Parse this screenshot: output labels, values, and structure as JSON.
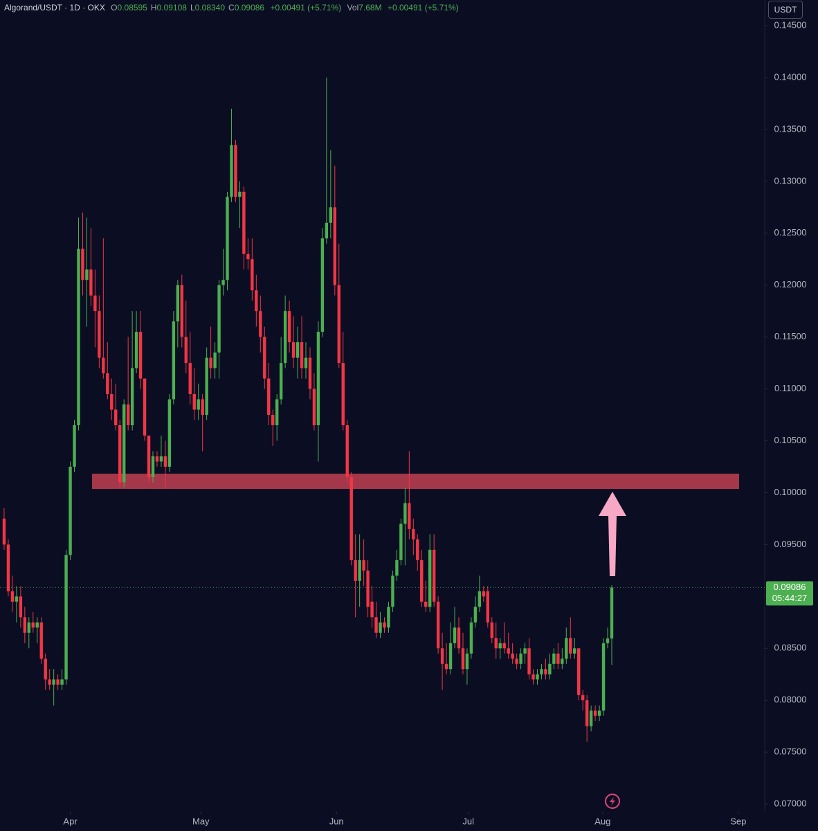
{
  "chart_data": {
    "type": "candlestick",
    "header": {
      "symbol": "Algorand/USDT · 1D · OKX",
      "ohlc": [
        {
          "label": "O",
          "value": "0.08595"
        },
        {
          "label": "H",
          "value": "0.09108"
        },
        {
          "label": "L",
          "value": "0.08340"
        },
        {
          "label": "C",
          "value": "0.09086"
        }
      ],
      "change": "+0.00491 (+5.71%)",
      "volume_label": "Vol",
      "volume": "7.68M",
      "volume_change": "+0.00491 (+5.71%)"
    },
    "currency": "USDT",
    "last_price_label": "0.09086",
    "countdown": "05:44:27",
    "up_color": "#4caf50",
    "down_color": "#f23645",
    "x": [
      0,
      1,
      2,
      3,
      4,
      5,
      6,
      7,
      8,
      9,
      10,
      11,
      12,
      13,
      14,
      15,
      16,
      17,
      18,
      19,
      20,
      21,
      22,
      23,
      24,
      25,
      26,
      27,
      28,
      29,
      30,
      31,
      32,
      33,
      34,
      35,
      36,
      37,
      38,
      39,
      40,
      41,
      42,
      43,
      44,
      45,
      46,
      47,
      48,
      49,
      50,
      51,
      52,
      53,
      54,
      55,
      56,
      57,
      58,
      59,
      60,
      61,
      62,
      63,
      64,
      65,
      66,
      67,
      68,
      69,
      70,
      71,
      72,
      73,
      74,
      75,
      76,
      77,
      78,
      79,
      80,
      81,
      82,
      83,
      84,
      85,
      86,
      87,
      88,
      89,
      90,
      91,
      92,
      93,
      94,
      95,
      96,
      97,
      98,
      99,
      100,
      101,
      102,
      103,
      104,
      105,
      106,
      107,
      108,
      109,
      110,
      111,
      112,
      113,
      114,
      115,
      116,
      117,
      118,
      119,
      120,
      121,
      122,
      123,
      124,
      125,
      126,
      127,
      128,
      129,
      130,
      131,
      132,
      133,
      134,
      135,
      136,
      137,
      138,
      139,
      140,
      141,
      142,
      143,
      144,
      145,
      146,
      147
    ],
    "open": [
      0.0975,
      0.095,
      0.0905,
      0.0895,
      0.09,
      0.088,
      0.0865,
      0.0875,
      0.087,
      0.0875,
      0.084,
      0.082,
      0.0815,
      0.082,
      0.0815,
      0.082,
      0.094,
      0.1025,
      0.1065,
      0.1235,
      0.1205,
      0.1215,
      0.119,
      0.1175,
      0.113,
      0.1115,
      0.1095,
      0.108,
      0.1065,
      0.101,
      0.1085,
      0.1065,
      0.112,
      0.1155,
      0.111,
      0.1055,
      0.1015,
      0.1035,
      0.103,
      0.1035,
      0.1025,
      0.109,
      0.1165,
      0.12,
      0.115,
      0.1125,
      0.1095,
      0.108,
      0.109,
      0.1075,
      0.113,
      0.112,
      0.1135,
      0.12,
      0.1205,
      0.1285,
      0.1335,
      0.1285,
      0.129,
      0.123,
      0.1225,
      0.1195,
      0.1175,
      0.115,
      0.111,
      0.1075,
      0.1065,
      0.109,
      0.1125,
      0.1175,
      0.1145,
      0.113,
      0.1145,
      0.112,
      0.113,
      0.11,
      0.1065,
      0.1155,
      0.1245,
      0.126,
      0.1275,
      0.12,
      0.1125,
      0.1065,
      0.1015,
      0.0935,
      0.0915,
      0.0935,
      0.0925,
      0.0895,
      0.088,
      0.0865,
      0.0875,
      0.087,
      0.089,
      0.092,
      0.0935,
      0.097,
      0.099,
      0.0965,
      0.0955,
      0.0935,
      0.0895,
      0.089,
      0.0945,
      0.0895,
      0.085,
      0.0835,
      0.083,
      0.0855,
      0.087,
      0.085,
      0.083,
      0.0845,
      0.0875,
      0.089,
      0.0905,
      0.0905,
      0.0875,
      0.086,
      0.085,
      0.0855,
      0.085,
      0.0845,
      0.084,
      0.0835,
      0.0845,
      0.085,
      0.0825,
      0.082,
      0.0825,
      0.083,
      0.0825,
      0.0835,
      0.0845,
      0.0835,
      0.084,
      0.086,
      0.0845,
      0.085,
      0.0805,
      0.08,
      0.0775,
      0.079,
      0.0785,
      0.079,
      0.0855,
      0.08595
    ],
    "high": [
      0.0985,
      0.0955,
      0.092,
      0.091,
      0.091,
      0.089,
      0.088,
      0.0885,
      0.088,
      0.088,
      0.0845,
      0.083,
      0.083,
      0.0825,
      0.083,
      0.0945,
      0.103,
      0.107,
      0.1265,
      0.127,
      0.1265,
      0.1255,
      0.1215,
      0.119,
      0.1245,
      0.1145,
      0.111,
      0.1105,
      0.107,
      0.109,
      0.115,
      0.1175,
      0.1175,
      0.1175,
      0.111,
      0.1055,
      0.104,
      0.104,
      0.1055,
      0.105,
      0.1095,
      0.1175,
      0.1205,
      0.121,
      0.1185,
      0.1155,
      0.112,
      0.1105,
      0.1095,
      0.114,
      0.116,
      0.1145,
      0.1205,
      0.1235,
      0.129,
      0.137,
      0.134,
      0.13,
      0.1295,
      0.1245,
      0.1245,
      0.121,
      0.119,
      0.116,
      0.1125,
      0.108,
      0.1095,
      0.115,
      0.119,
      0.1185,
      0.117,
      0.116,
      0.117,
      0.1145,
      0.114,
      0.1115,
      0.1165,
      0.1255,
      0.14,
      0.133,
      0.1315,
      0.124,
      0.1155,
      0.107,
      0.102,
      0.096,
      0.096,
      0.0955,
      0.0935,
      0.091,
      0.0895,
      0.0885,
      0.088,
      0.0895,
      0.0925,
      0.0945,
      0.0975,
      0.1005,
      0.104,
      0.0975,
      0.096,
      0.0945,
      0.0915,
      0.096,
      0.096,
      0.09,
      0.0865,
      0.0855,
      0.0875,
      0.089,
      0.088,
      0.0865,
      0.085,
      0.088,
      0.09,
      0.092,
      0.091,
      0.091,
      0.088,
      0.0875,
      0.086,
      0.0875,
      0.0865,
      0.0855,
      0.0845,
      0.085,
      0.0855,
      0.086,
      0.083,
      0.083,
      0.0835,
      0.084,
      0.0845,
      0.085,
      0.0855,
      0.085,
      0.087,
      0.088,
      0.086,
      0.085,
      0.081,
      0.0805,
      0.0795,
      0.0795,
      0.0795,
      0.086,
      0.087,
      0.09108
    ],
    "low": [
      0.0945,
      0.09,
      0.0885,
      0.0875,
      0.087,
      0.0855,
      0.085,
      0.0865,
      0.0855,
      0.0835,
      0.081,
      0.081,
      0.0795,
      0.081,
      0.081,
      0.0815,
      0.0935,
      0.102,
      0.106,
      0.119,
      0.116,
      0.118,
      0.114,
      0.112,
      0.111,
      0.109,
      0.107,
      0.106,
      0.1005,
      0.1005,
      0.106,
      0.106,
      0.1115,
      0.11,
      0.105,
      0.101,
      0.101,
      0.1025,
      0.1025,
      0.1005,
      0.102,
      0.1085,
      0.114,
      0.114,
      0.1115,
      0.1085,
      0.107,
      0.107,
      0.104,
      0.107,
      0.111,
      0.111,
      0.111,
      0.119,
      0.1195,
      0.128,
      0.128,
      0.1255,
      0.1215,
      0.1215,
      0.1185,
      0.116,
      0.1135,
      0.11,
      0.1065,
      0.1045,
      0.105,
      0.1085,
      0.112,
      0.1135,
      0.112,
      0.111,
      0.111,
      0.111,
      0.109,
      0.106,
      0.103,
      0.115,
      0.124,
      0.1245,
      0.119,
      0.112,
      0.106,
      0.101,
      0.093,
      0.088,
      0.089,
      0.091,
      0.088,
      0.087,
      0.086,
      0.086,
      0.0865,
      0.0865,
      0.0885,
      0.0915,
      0.093,
      0.093,
      0.0955,
      0.094,
      0.0925,
      0.089,
      0.0885,
      0.0885,
      0.089,
      0.0845,
      0.081,
      0.0825,
      0.0825,
      0.085,
      0.0845,
      0.0825,
      0.0815,
      0.084,
      0.087,
      0.0885,
      0.0895,
      0.087,
      0.0855,
      0.084,
      0.084,
      0.0845,
      0.084,
      0.0835,
      0.083,
      0.083,
      0.0835,
      0.082,
      0.0815,
      0.0815,
      0.082,
      0.082,
      0.082,
      0.083,
      0.083,
      0.083,
      0.0835,
      0.084,
      0.084,
      0.08,
      0.079,
      0.076,
      0.077,
      0.078,
      0.078,
      0.0785,
      0.085,
      0.0834
    ],
    "close": [
      0.095,
      0.0905,
      0.0895,
      0.09,
      0.088,
      0.0865,
      0.0875,
      0.087,
      0.0875,
      0.084,
      0.082,
      0.0815,
      0.082,
      0.0815,
      0.082,
      0.094,
      0.1025,
      0.1065,
      0.1235,
      0.1205,
      0.1215,
      0.119,
      0.1175,
      0.113,
      0.1115,
      0.1095,
      0.108,
      0.1065,
      0.101,
      0.1085,
      0.1065,
      0.112,
      0.1155,
      0.111,
      0.1055,
      0.1015,
      0.1035,
      0.103,
      0.1035,
      0.1025,
      0.109,
      0.1165,
      0.12,
      0.115,
      0.1125,
      0.1095,
      0.108,
      0.109,
      0.1075,
      0.113,
      0.112,
      0.1135,
      0.12,
      0.1205,
      0.1285,
      0.1335,
      0.1285,
      0.129,
      0.123,
      0.1225,
      0.1195,
      0.1175,
      0.115,
      0.111,
      0.1075,
      0.1065,
      0.109,
      0.1125,
      0.1175,
      0.1145,
      0.113,
      0.1145,
      0.112,
      0.113,
      0.11,
      0.1065,
      0.1155,
      0.1245,
      0.126,
      0.1275,
      0.12,
      0.1125,
      0.1065,
      0.1015,
      0.0935,
      0.0915,
      0.0935,
      0.0925,
      0.089,
      0.088,
      0.0865,
      0.0875,
      0.087,
      0.089,
      0.092,
      0.0935,
      0.097,
      0.099,
      0.0965,
      0.0955,
      0.0935,
      0.0895,
      0.089,
      0.0945,
      0.0895,
      0.085,
      0.0835,
      0.083,
      0.0855,
      0.087,
      0.085,
      0.083,
      0.0845,
      0.0875,
      0.089,
      0.0905,
      0.09,
      0.0875,
      0.086,
      0.085,
      0.0855,
      0.085,
      0.0845,
      0.084,
      0.0835,
      0.0845,
      0.085,
      0.0825,
      0.082,
      0.0825,
      0.083,
      0.0825,
      0.0835,
      0.0845,
      0.0835,
      0.084,
      0.086,
      0.0845,
      0.085,
      0.0805,
      0.08,
      0.0775,
      0.079,
      0.0785,
      0.079,
      0.0855,
      0.08595,
      0.09086
    ],
    "xlim": [
      -1,
      184
    ],
    "xticks": [
      {
        "value": 16,
        "label": "Apr"
      },
      {
        "value": 47.6,
        "label": "May"
      },
      {
        "value": 80.4,
        "label": "Jun"
      },
      {
        "value": 112.3,
        "label": "Jul"
      },
      {
        "value": 144.8,
        "label": "Aug"
      },
      {
        "value": 177.6,
        "label": "Sep"
      }
    ],
    "ylim": [
      0.06927,
      0.14747
    ],
    "yticks": [
      {
        "value": 0.145,
        "label": "0.14500"
      },
      {
        "value": 0.14,
        "label": "0.14000"
      },
      {
        "value": 0.135,
        "label": "0.13500"
      },
      {
        "value": 0.13,
        "label": "0.13000"
      },
      {
        "value": 0.125,
        "label": "0.12500"
      },
      {
        "value": 0.12,
        "label": "0.12000"
      },
      {
        "value": 0.115,
        "label": "0.11500"
      },
      {
        "value": 0.11,
        "label": "0.11000"
      },
      {
        "value": 0.105,
        "label": "0.10500"
      },
      {
        "value": 0.1,
        "label": "0.10000"
      },
      {
        "value": 0.095,
        "label": "0.09500"
      },
      {
        "value": 0.09,
        "label": "0.09000"
      },
      {
        "value": 0.085,
        "label": "0.08500"
      },
      {
        "value": 0.08,
        "label": "0.08000"
      },
      {
        "value": 0.075,
        "label": "0.07500"
      },
      {
        "value": 0.07,
        "label": "0.07000"
      }
    ],
    "resistance_zone": {
      "low": 0.10036,
      "high": 0.10183,
      "color": "#b33b4e"
    },
    "arrow_color": "#f7a8c4"
  }
}
